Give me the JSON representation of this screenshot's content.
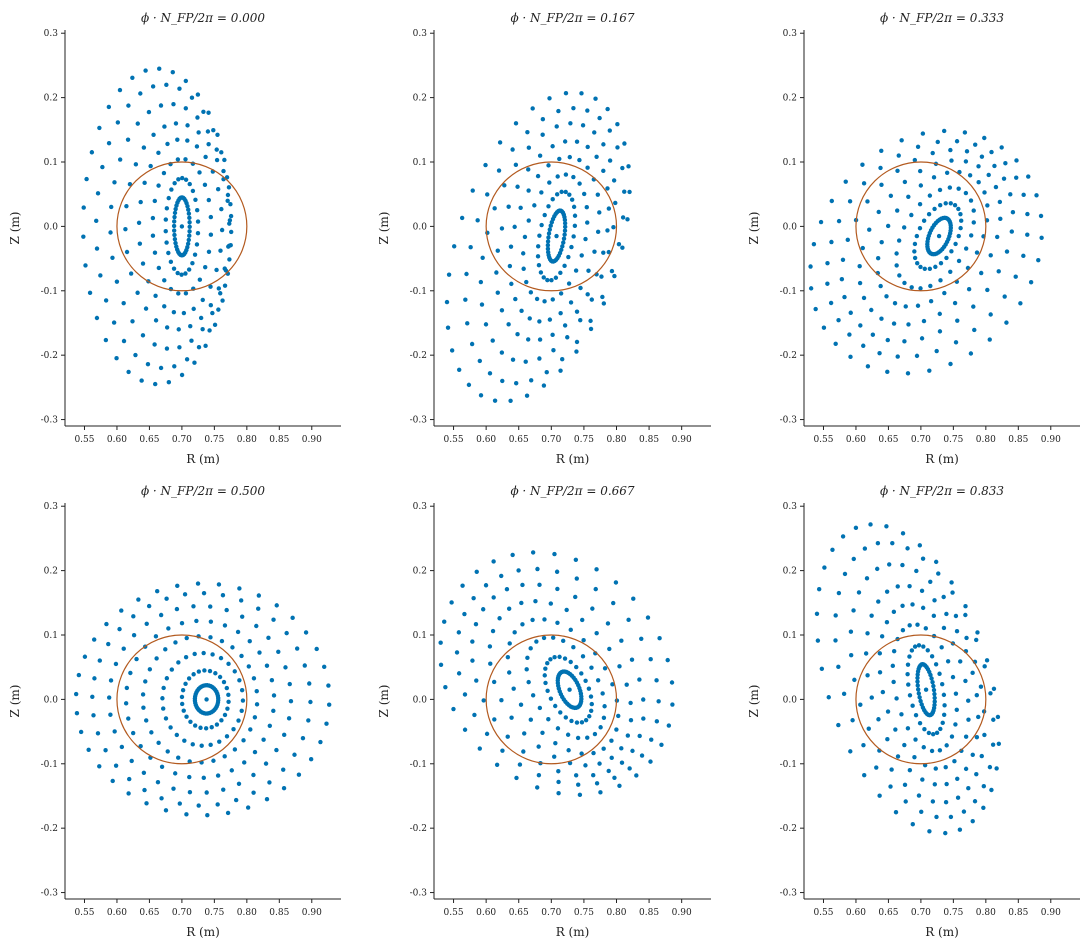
{
  "colors": {
    "points": "#0072b2",
    "circle": "#b35a1f",
    "axes": "#222222"
  },
  "chart_data": [
    {
      "type": "scatter",
      "title": "ϕ · N_FP/2π = 0.000",
      "xlabel": "R (m)",
      "ylabel": "Z (m)",
      "xlim": [
        0.52,
        0.945
      ],
      "ylim": [
        -0.31,
        0.305
      ],
      "xticks": [
        "0.55",
        "0.60",
        "0.65",
        "0.70",
        "0.75",
        "0.80",
        "0.85",
        "0.90"
      ],
      "yticks": [
        "-0.3",
        "-0.2",
        "-0.1",
        "0.0",
        "0.1",
        "0.2",
        "0.3"
      ],
      "grid": false,
      "circle": {
        "center_r": 0.7,
        "center_z": 0.0,
        "radius": 0.1
      },
      "axis_point": {
        "r": 0.7,
        "z": 0.0
      },
      "surfaces": [
        {
          "r0": 0.7,
          "z0": 0.0,
          "a": 0.012,
          "b": 0.045,
          "tilt": 0.0,
          "n": 40,
          "rot": 0.3
        },
        {
          "r0": 0.7,
          "z0": 0.0,
          "a": 0.025,
          "b": 0.075,
          "tilt": 0.0,
          "n": 26,
          "rot": 0.1
        },
        {
          "r0": 0.7,
          "z0": 0.0,
          "a": 0.045,
          "b": 0.105,
          "tilt": 0.0,
          "n": 24,
          "rot": 0.4
        },
        {
          "r0": 0.698,
          "z0": 0.0,
          "a": 0.064,
          "b": 0.135,
          "tilt": 0.0,
          "n": 26,
          "rot": 0.2
        },
        {
          "r0": 0.693,
          "z0": 0.0,
          "a": 0.08,
          "b": 0.16,
          "tilt": 0.0,
          "n": 28,
          "rot": 0.7
        },
        {
          "r0": 0.682,
          "z0": 0.0,
          "a": 0.092,
          "b": 0.19,
          "tilt": 0.0,
          "n": 30,
          "rot": 0.05
        },
        {
          "r0": 0.672,
          "z0": 0.0,
          "a": 0.104,
          "b": 0.22,
          "tilt": 0.0,
          "n": 32,
          "rot": 0.55
        },
        {
          "r0": 0.662,
          "z0": 0.0,
          "a": 0.114,
          "b": 0.245,
          "tilt": 0.0,
          "n": 34,
          "rot": 0.25
        }
      ]
    },
    {
      "type": "scatter",
      "title": "ϕ · N_FP/2π = 0.167",
      "xlabel": "R (m)",
      "ylabel": "Z (m)",
      "xlim": [
        0.52,
        0.945
      ],
      "ylim": [
        -0.31,
        0.305
      ],
      "xticks": [
        "0.55",
        "0.60",
        "0.65",
        "0.70",
        "0.75",
        "0.80",
        "0.85",
        "0.90"
      ],
      "yticks": [
        "-0.3",
        "-0.2",
        "-0.1",
        "0.0",
        "0.1",
        "0.2",
        "0.3"
      ],
      "grid": false,
      "circle": {
        "center_r": 0.7,
        "center_z": 0.0,
        "radius": 0.1
      },
      "axis_point": {
        "r": 0.708,
        "z": -0.015
      },
      "surfaces": [
        {
          "r0": 0.708,
          "z0": -0.015,
          "a": 0.012,
          "b": 0.04,
          "tilt": -0.15,
          "n": 40,
          "rot": 0.1
        },
        {
          "r0": 0.708,
          "z0": -0.015,
          "a": 0.026,
          "b": 0.07,
          "tilt": -0.18,
          "n": 26,
          "rot": 0.3
        },
        {
          "r0": 0.706,
          "z0": -0.018,
          "a": 0.046,
          "b": 0.1,
          "tilt": -0.2,
          "n": 24,
          "rot": 0.6
        },
        {
          "r0": 0.705,
          "z0": -0.02,
          "a": 0.064,
          "b": 0.13,
          "tilt": -0.22,
          "n": 26,
          "rot": 0.2
        },
        {
          "r0": 0.702,
          "z0": -0.022,
          "a": 0.08,
          "b": 0.158,
          "tilt": -0.24,
          "n": 28,
          "rot": 0.45
        },
        {
          "r0": 0.695,
          "z0": -0.025,
          "a": 0.094,
          "b": 0.19,
          "tilt": -0.26,
          "n": 30,
          "rot": 0.05
        },
        {
          "r0": 0.69,
          "z0": -0.03,
          "a": 0.11,
          "b": 0.22,
          "tilt": -0.28,
          "n": 32,
          "rot": 0.35
        },
        {
          "r0": 0.68,
          "z0": -0.032,
          "a": 0.125,
          "b": 0.248,
          "tilt": -0.3,
          "n": 34,
          "rot": 0.15
        }
      ]
    },
    {
      "type": "scatter",
      "title": "ϕ · N_FP/2π = 0.333",
      "xlabel": "R (m)",
      "ylabel": "Z (m)",
      "xlim": [
        0.52,
        0.945
      ],
      "ylim": [
        -0.31,
        0.305
      ],
      "xticks": [
        "0.55",
        "0.60",
        "0.65",
        "0.70",
        "0.75",
        "0.80",
        "0.85",
        "0.90"
      ],
      "yticks": [
        "-0.3",
        "-0.2",
        "-0.1",
        "0.0",
        "0.1",
        "0.2",
        "0.3"
      ],
      "grid": false,
      "circle": {
        "center_r": 0.7,
        "center_z": 0.0,
        "radius": 0.1
      },
      "axis_point": {
        "r": 0.728,
        "z": -0.015
      },
      "surfaces": [
        {
          "r0": 0.728,
          "z0": -0.015,
          "a": 0.015,
          "b": 0.03,
          "tilt": -0.4,
          "n": 40,
          "rot": 0.2
        },
        {
          "r0": 0.726,
          "z0": -0.015,
          "a": 0.03,
          "b": 0.055,
          "tilt": -0.45,
          "n": 26,
          "rot": 0.5
        },
        {
          "r0": 0.722,
          "z0": -0.018,
          "a": 0.05,
          "b": 0.085,
          "tilt": -0.5,
          "n": 24,
          "rot": 0.1
        },
        {
          "r0": 0.718,
          "z0": -0.02,
          "a": 0.07,
          "b": 0.115,
          "tilt": -0.55,
          "n": 26,
          "rot": 0.4
        },
        {
          "r0": 0.714,
          "z0": -0.025,
          "a": 0.092,
          "b": 0.14,
          "tilt": -0.58,
          "n": 28,
          "rot": 0.25
        },
        {
          "r0": 0.71,
          "z0": -0.03,
          "a": 0.115,
          "b": 0.162,
          "tilt": -0.6,
          "n": 30,
          "rot": 0.6
        },
        {
          "r0": 0.71,
          "z0": -0.035,
          "a": 0.14,
          "b": 0.18,
          "tilt": -0.62,
          "n": 32,
          "rot": 0.05
        },
        {
          "r0": 0.708,
          "z0": -0.04,
          "a": 0.165,
          "b": 0.2,
          "tilt": -0.64,
          "n": 34,
          "rot": 0.3
        }
      ]
    },
    {
      "type": "scatter",
      "title": "ϕ · N_FP/2π = 0.500",
      "xlabel": "R (m)",
      "ylabel": "Z (m)",
      "xlim": [
        0.52,
        0.945
      ],
      "ylim": [
        -0.31,
        0.305
      ],
      "xticks": [
        "0.55",
        "0.60",
        "0.65",
        "0.70",
        "0.75",
        "0.80",
        "0.85",
        "0.90"
      ],
      "yticks": [
        "-0.3",
        "-0.2",
        "-0.1",
        "0.0",
        "0.1",
        "0.2",
        "0.3"
      ],
      "grid": false,
      "circle": {
        "center_r": 0.7,
        "center_z": 0.0,
        "radius": 0.1
      },
      "axis_point": {
        "r": 0.738,
        "z": 0.0
      },
      "surfaces": [
        {
          "r0": 0.738,
          "z0": 0.0,
          "a": 0.018,
          "b": 0.022,
          "tilt": 0.0,
          "n": 40,
          "rot": 0.1
        },
        {
          "r0": 0.736,
          "z0": 0.0,
          "a": 0.036,
          "b": 0.045,
          "tilt": 0.0,
          "n": 26,
          "rot": 0.4
        },
        {
          "r0": 0.732,
          "z0": 0.0,
          "a": 0.062,
          "b": 0.072,
          "tilt": 0.0,
          "n": 28,
          "rot": 0.2
        },
        {
          "r0": 0.728,
          "z0": 0.0,
          "a": 0.088,
          "b": 0.098,
          "tilt": 0.0,
          "n": 30,
          "rot": 0.55
        },
        {
          "r0": 0.728,
          "z0": 0.0,
          "a": 0.114,
          "b": 0.122,
          "tilt": 0.0,
          "n": 32,
          "rot": 0.05
        },
        {
          "r0": 0.728,
          "z0": 0.0,
          "a": 0.14,
          "b": 0.145,
          "tilt": 0.0,
          "n": 34,
          "rot": 0.35
        },
        {
          "r0": 0.73,
          "z0": 0.0,
          "a": 0.168,
          "b": 0.165,
          "tilt": 0.0,
          "n": 36,
          "rot": 0.15
        },
        {
          "r0": 0.732,
          "z0": 0.0,
          "a": 0.195,
          "b": 0.18,
          "tilt": 0.0,
          "n": 38,
          "rot": 0.45
        }
      ]
    },
    {
      "type": "scatter",
      "title": "ϕ · N_FP/2π = 0.667",
      "xlabel": "R (m)",
      "ylabel": "Z (m)",
      "xlim": [
        0.52,
        0.945
      ],
      "ylim": [
        -0.31,
        0.305
      ],
      "xticks": [
        "0.55",
        "0.60",
        "0.65",
        "0.70",
        "0.75",
        "0.80",
        "0.85",
        "0.90"
      ],
      "yticks": [
        "-0.3",
        "-0.2",
        "-0.1",
        "0.0",
        "0.1",
        "0.2",
        "0.3"
      ],
      "grid": false,
      "circle": {
        "center_r": 0.7,
        "center_z": 0.0,
        "radius": 0.1
      },
      "axis_point": {
        "r": 0.728,
        "z": 0.015
      },
      "surfaces": [
        {
          "r0": 0.728,
          "z0": 0.015,
          "a": 0.015,
          "b": 0.03,
          "tilt": 0.4,
          "n": 40,
          "rot": 0.2
        },
        {
          "r0": 0.726,
          "z0": 0.015,
          "a": 0.03,
          "b": 0.055,
          "tilt": 0.45,
          "n": 26,
          "rot": 0.5
        },
        {
          "r0": 0.722,
          "z0": 0.018,
          "a": 0.05,
          "b": 0.085,
          "tilt": 0.5,
          "n": 24,
          "rot": 0.1
        },
        {
          "r0": 0.718,
          "z0": 0.02,
          "a": 0.07,
          "b": 0.115,
          "tilt": 0.55,
          "n": 26,
          "rot": 0.4
        },
        {
          "r0": 0.714,
          "z0": 0.025,
          "a": 0.092,
          "b": 0.14,
          "tilt": 0.58,
          "n": 28,
          "rot": 0.25
        },
        {
          "r0": 0.71,
          "z0": 0.03,
          "a": 0.115,
          "b": 0.162,
          "tilt": 0.6,
          "n": 30,
          "rot": 0.6
        },
        {
          "r0": 0.71,
          "z0": 0.035,
          "a": 0.14,
          "b": 0.18,
          "tilt": 0.62,
          "n": 32,
          "rot": 0.05
        },
        {
          "r0": 0.708,
          "z0": 0.04,
          "a": 0.165,
          "b": 0.2,
          "tilt": 0.64,
          "n": 34,
          "rot": 0.3
        }
      ]
    },
    {
      "type": "scatter",
      "title": "ϕ · N_FP/2π = 0.833",
      "xlabel": "R (m)",
      "ylabel": "Z (m)",
      "xlim": [
        0.52,
        0.945
      ],
      "ylim": [
        -0.31,
        0.305
      ],
      "xticks": [
        "0.55",
        "0.60",
        "0.65",
        "0.70",
        "0.75",
        "0.80",
        "0.85",
        "0.90"
      ],
      "yticks": [
        "-0.3",
        "-0.2",
        "-0.1",
        "0.0",
        "0.1",
        "0.2",
        "0.3"
      ],
      "grid": false,
      "circle": {
        "center_r": 0.7,
        "center_z": 0.0,
        "radius": 0.1
      },
      "axis_point": {
        "r": 0.708,
        "z": 0.015
      },
      "surfaces": [
        {
          "r0": 0.708,
          "z0": 0.015,
          "a": 0.012,
          "b": 0.04,
          "tilt": 0.15,
          "n": 40,
          "rot": 0.1
        },
        {
          "r0": 0.708,
          "z0": 0.015,
          "a": 0.026,
          "b": 0.07,
          "tilt": 0.18,
          "n": 26,
          "rot": 0.3
        },
        {
          "r0": 0.706,
          "z0": 0.018,
          "a": 0.046,
          "b": 0.1,
          "tilt": 0.2,
          "n": 24,
          "rot": 0.6
        },
        {
          "r0": 0.705,
          "z0": 0.02,
          "a": 0.064,
          "b": 0.13,
          "tilt": 0.22,
          "n": 26,
          "rot": 0.2
        },
        {
          "r0": 0.702,
          "z0": 0.022,
          "a": 0.08,
          "b": 0.158,
          "tilt": 0.24,
          "n": 28,
          "rot": 0.45
        },
        {
          "r0": 0.695,
          "z0": 0.025,
          "a": 0.094,
          "b": 0.19,
          "tilt": 0.26,
          "n": 30,
          "rot": 0.05
        },
        {
          "r0": 0.69,
          "z0": 0.03,
          "a": 0.11,
          "b": 0.22,
          "tilt": 0.28,
          "n": 32,
          "rot": 0.35
        },
        {
          "r0": 0.68,
          "z0": 0.032,
          "a": 0.125,
          "b": 0.248,
          "tilt": 0.3,
          "n": 34,
          "rot": 0.15
        }
      ]
    }
  ]
}
